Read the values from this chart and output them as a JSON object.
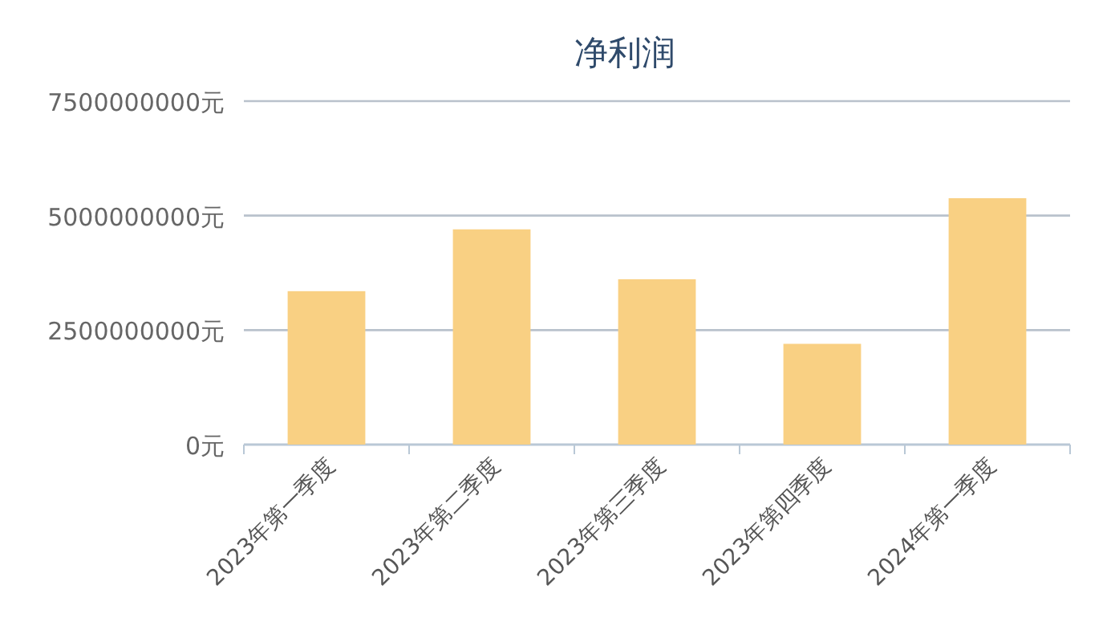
{
  "chart_data": {
    "type": "bar",
    "title": "净利润",
    "categories": [
      "2023年第一季度",
      "2023年第二季度",
      "2023年第三季度",
      "2023年第四季度",
      "2024年第一季度"
    ],
    "values": [
      3350000000,
      4700000000,
      3610000000,
      2200000000,
      5380000000
    ],
    "color": "#f9d083",
    "ylim": [
      0,
      7500000000
    ],
    "yticks": [
      {
        "value": 0,
        "label": "0元"
      },
      {
        "value": 2500000000,
        "label": "2500000000元"
      },
      {
        "value": 5000000000,
        "label": "5000000000元"
      },
      {
        "value": 7500000000,
        "label": "7500000000元"
      }
    ],
    "grid": "y"
  }
}
